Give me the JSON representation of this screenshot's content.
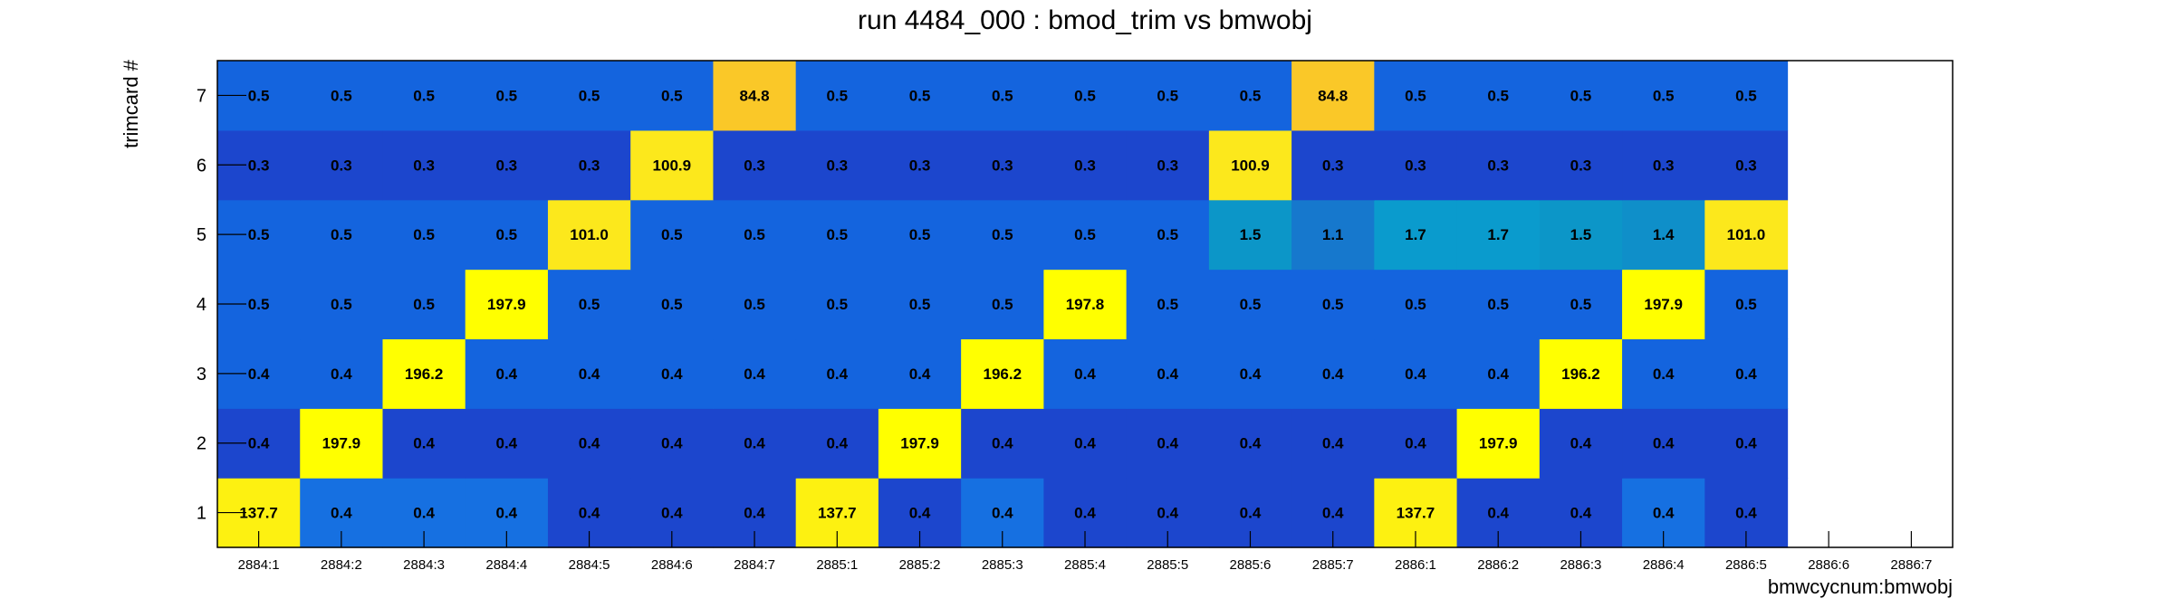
{
  "chart_data": {
    "type": "heatmap",
    "title": "run 4484_000 : bmod_trim vs bmwobj",
    "xlabel": "bmwcycnum:bmwobj",
    "ylabel": "trimcard #",
    "x_categories": [
      "2884:1",
      "2884:2",
      "2884:3",
      "2884:4",
      "2884:5",
      "2884:6",
      "2884:7",
      "2885:1",
      "2885:2",
      "2885:3",
      "2885:4",
      "2885:5",
      "2885:6",
      "2885:7",
      "2886:1",
      "2886:2",
      "2886:3",
      "2886:4",
      "2886:5",
      "2886:6",
      "2886:7"
    ],
    "y_categories": [
      "1",
      "2",
      "3",
      "4",
      "5",
      "6",
      "7"
    ],
    "cells": [
      [
        "137.7",
        "0.4",
        "0.4",
        "0.4",
        "0.4",
        "0.4",
        "0.4",
        "137.7",
        "0.4",
        "0.4",
        "0.4",
        "0.4",
        "0.4",
        "0.4",
        "137.7",
        "0.4",
        "0.4",
        "0.4",
        "0.4",
        null,
        null
      ],
      [
        "0.4",
        "197.9",
        "0.4",
        "0.4",
        "0.4",
        "0.4",
        "0.4",
        "0.4",
        "197.9",
        "0.4",
        "0.4",
        "0.4",
        "0.4",
        "0.4",
        "0.4",
        "197.9",
        "0.4",
        "0.4",
        "0.4",
        null,
        null
      ],
      [
        "0.4",
        "0.4",
        "196.2",
        "0.4",
        "0.4",
        "0.4",
        "0.4",
        "0.4",
        "0.4",
        "196.2",
        "0.4",
        "0.4",
        "0.4",
        "0.4",
        "0.4",
        "0.4",
        "196.2",
        "0.4",
        "0.4",
        null,
        null
      ],
      [
        "0.5",
        "0.5",
        "0.5",
        "197.9",
        "0.5",
        "0.5",
        "0.5",
        "0.5",
        "0.5",
        "0.5",
        "197.8",
        "0.5",
        "0.5",
        "0.5",
        "0.5",
        "0.5",
        "0.5",
        "197.9",
        "0.5",
        null,
        null
      ],
      [
        "0.5",
        "0.5",
        "0.5",
        "0.5",
        "101.0",
        "0.5",
        "0.5",
        "0.5",
        "0.5",
        "0.5",
        "0.5",
        "0.5",
        "1.5",
        "1.1",
        "1.7",
        "1.7",
        "1.5",
        "1.4",
        "101.0",
        null,
        null
      ],
      [
        "0.3",
        "0.3",
        "0.3",
        "0.3",
        "0.3",
        "100.9",
        "0.3",
        "0.3",
        "0.3",
        "0.3",
        "0.3",
        "0.3",
        "100.9",
        "0.3",
        "0.3",
        "0.3",
        "0.3",
        "0.3",
        "0.3",
        null,
        null
      ],
      [
        "0.5",
        "0.5",
        "0.5",
        "0.5",
        "0.5",
        "0.5",
        "84.8",
        "0.5",
        "0.5",
        "0.5",
        "0.5",
        "0.5",
        "0.5",
        "84.8",
        "0.5",
        "0.5",
        "0.5",
        "0.5",
        "0.5",
        null,
        null
      ]
    ],
    "grid": false,
    "legend": "none"
  }
}
